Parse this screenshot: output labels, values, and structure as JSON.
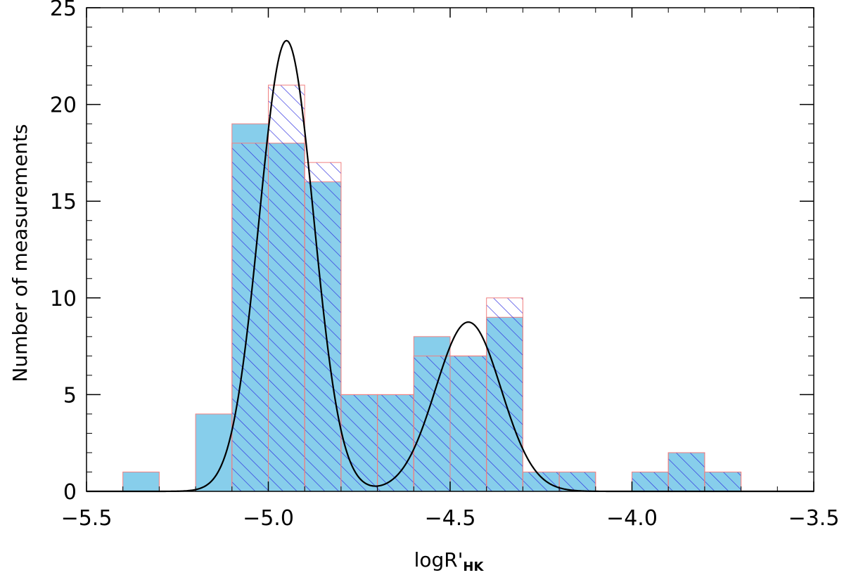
{
  "chart_data": {
    "type": "bar",
    "xlabel": "logR'",
    "xlabel_subscript": "HK",
    "ylabel": "Number of measurements",
    "xlim": [
      -5.5,
      -3.5
    ],
    "ylim": [
      0,
      25
    ],
    "xticks": [
      -5.5,
      -5.0,
      -4.5,
      -4.0,
      -3.5
    ],
    "xtick_labels": [
      "−5.5",
      "−5.0",
      "−4.5",
      "−4.0",
      "−3.5"
    ],
    "yticks": [
      0,
      5,
      10,
      15,
      20,
      25
    ],
    "ytick_labels": [
      "0",
      "5",
      "10",
      "15",
      "20",
      "25"
    ],
    "bin_width": 0.1,
    "bin_left_edges": [
      -5.4,
      -5.3,
      -5.2,
      -5.1,
      -5.0,
      -4.9,
      -4.8,
      -4.7,
      -4.6,
      -4.5,
      -4.4,
      -4.3,
      -4.2,
      -4.1,
      -4.0,
      -3.9,
      -3.8
    ],
    "series": [
      {
        "values": [
          1,
          0,
          4,
          19,
          18,
          16,
          5,
          5,
          8,
          7,
          9,
          1,
          1,
          0,
          1,
          2,
          1
        ],
        "fill": "#87ceeb",
        "style": "solid"
      },
      {
        "values": [
          0,
          0,
          0,
          18,
          21,
          17,
          5,
          5,
          7,
          7,
          10,
          1,
          1,
          0,
          1,
          2,
          1
        ],
        "fill": "none",
        "hatch_color": "#2a2adf",
        "style": "hatched",
        "edge_color": "#f08080"
      }
    ],
    "fit": {
      "type": "double-gaussian",
      "components": [
        {
          "center": -4.95,
          "sigma": 0.075,
          "amplitude": 23.3
        },
        {
          "center": -4.45,
          "sigma": 0.09,
          "amplitude": 8.75
        }
      ],
      "color": "#000000"
    },
    "grid": false
  }
}
